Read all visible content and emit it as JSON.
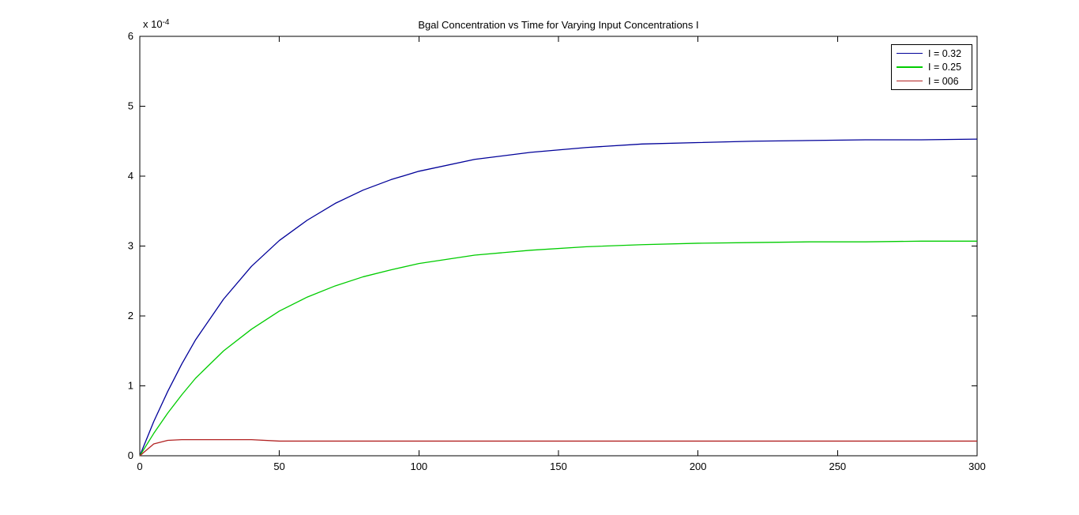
{
  "figure": {
    "background_color": "#ffffff",
    "axis_color": "#000000"
  },
  "chart_data": {
    "type": "line",
    "title": "Bgal Concentration vs Time for Varying Input Concentrations I",
    "xlabel": "",
    "ylabel": "",
    "y_scale_label": {
      "base": "x 10",
      "exponent": "-4"
    },
    "y_unit_multiplier": "1e-4",
    "xlim": [
      0,
      300
    ],
    "ylim": [
      0,
      6
    ],
    "x_ticks": [
      0,
      50,
      100,
      150,
      200,
      250,
      300
    ],
    "y_ticks": [
      0,
      1,
      2,
      3,
      4,
      5,
      6
    ],
    "grid": false,
    "box": true,
    "legend_position": "top-right",
    "x": [
      0,
      5,
      10,
      15,
      20,
      30,
      40,
      50,
      60,
      70,
      80,
      90,
      100,
      120,
      140,
      160,
      180,
      200,
      220,
      240,
      260,
      280,
      300
    ],
    "series": [
      {
        "name": "I = 0.32",
        "color": "#000099",
        "values": [
          0,
          0.49,
          0.92,
          1.31,
          1.66,
          2.24,
          2.71,
          3.08,
          3.37,
          3.61,
          3.8,
          3.95,
          4.07,
          4.24,
          4.34,
          4.41,
          4.46,
          4.48,
          4.5,
          4.51,
          4.52,
          4.52,
          4.53
        ]
      },
      {
        "name": "I = 0.25",
        "color": "#00CC00",
        "values": [
          0,
          0.32,
          0.61,
          0.87,
          1.11,
          1.5,
          1.81,
          2.07,
          2.27,
          2.43,
          2.56,
          2.66,
          2.75,
          2.87,
          2.94,
          2.99,
          3.02,
          3.04,
          3.05,
          3.06,
          3.06,
          3.07,
          3.07
        ]
      },
      {
        "name": "I = 006",
        "color": "#B22222",
        "values": [
          0,
          0.17,
          0.22,
          0.23,
          0.23,
          0.23,
          0.23,
          0.21,
          0.21,
          0.21,
          0.21,
          0.21,
          0.21,
          0.21,
          0.21,
          0.21,
          0.21,
          0.21,
          0.21,
          0.21,
          0.21,
          0.21,
          0.21
        ]
      }
    ]
  }
}
